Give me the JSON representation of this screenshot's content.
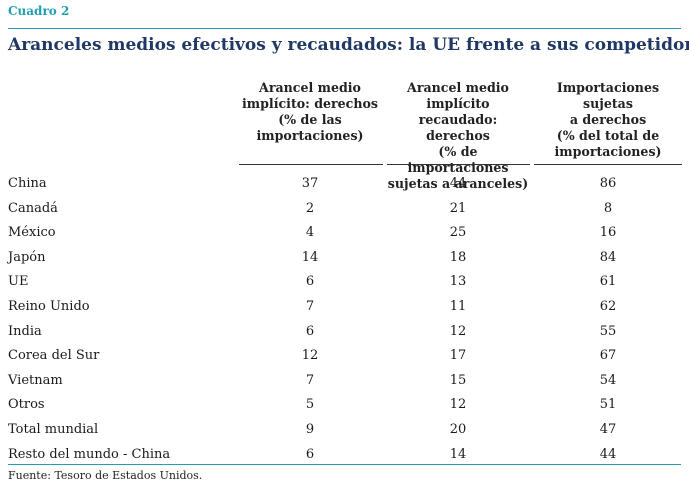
{
  "box_label": "Cuadro 2",
  "title": "Aranceles medios efectivos y recaudados: la UE frente a sus competidores",
  "columns": [
    [
      "Arancel medio",
      "implícito: derechos",
      "(% de las",
      "importaciones)"
    ],
    [
      "Arancel medio",
      "implícito recaudado:",
      "derechos",
      "(% de importaciones",
      "sujetas a aranceles)"
    ],
    [
      "Importaciones sujetas",
      "a derechos",
      "(% del total de",
      "importaciones)"
    ]
  ],
  "rows": [
    {
      "name": "China",
      "v1": "37",
      "v2": "44",
      "v3": "86"
    },
    {
      "name": "Canadá",
      "v1": "2",
      "v2": "21",
      "v3": "8"
    },
    {
      "name": "México",
      "v1": "4",
      "v2": "25",
      "v3": "16"
    },
    {
      "name": "Japón",
      "v1": "14",
      "v2": "18",
      "v3": "84"
    },
    {
      "name": "UE",
      "v1": "6",
      "v2": "13",
      "v3": "61"
    },
    {
      "name": "Reino Unido",
      "v1": "7",
      "v2": "11",
      "v3": "62"
    },
    {
      "name": "India",
      "v1": "6",
      "v2": "12",
      "v3": "55"
    },
    {
      "name": "Corea del Sur",
      "v1": "12",
      "v2": "17",
      "v3": "67"
    },
    {
      "name": "Vietnam",
      "v1": "7",
      "v2": "15",
      "v3": "54"
    },
    {
      "name": "Otros",
      "v1": "5",
      "v2": "12",
      "v3": "51"
    },
    {
      "name": "Total mundial",
      "v1": "9",
      "v2": "20",
      "v3": "47"
    },
    {
      "name": "Resto del mundo - China",
      "v1": "6",
      "v2": "14",
      "v3": "44"
    }
  ],
  "source": "Fuente: Tesoro de Estados Unidos.",
  "colors": {
    "accent": "#1f9fb0",
    "title": "#1f3864"
  }
}
